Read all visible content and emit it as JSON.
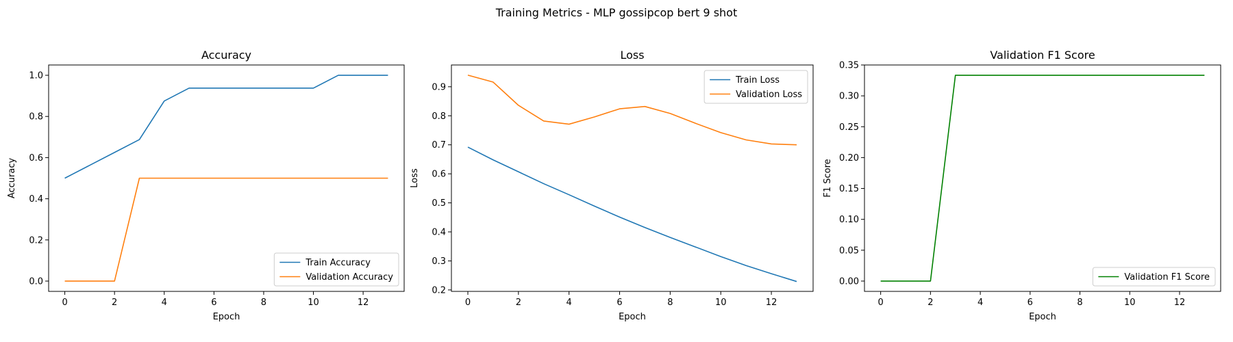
{
  "suptitle": "Training Metrics - MLP gossipcop bert 9 shot",
  "colors": {
    "train": "#1f77b4",
    "validation": "#ff7f0e",
    "f1": "#008000"
  },
  "chart_data": [
    {
      "type": "line",
      "title": "Accuracy",
      "xlabel": "Epoch",
      "ylabel": "Accuracy",
      "xlim": [
        -0.65,
        13.65
      ],
      "ylim": [
        -0.05,
        1.05
      ],
      "xticks": [
        0,
        2,
        4,
        6,
        8,
        10,
        12
      ],
      "yticks": [
        0.0,
        0.2,
        0.4,
        0.6,
        0.8,
        1.0
      ],
      "ytick_labels": [
        "0.0",
        "0.2",
        "0.4",
        "0.6",
        "0.8",
        "1.0"
      ],
      "legend_loc": "lower-right",
      "x": [
        0,
        1,
        2,
        3,
        4,
        5,
        6,
        7,
        8,
        9,
        10,
        11,
        12,
        13
      ],
      "series": [
        {
          "name": "Train Accuracy",
          "color": "#1f77b4",
          "values": [
            0.5,
            0.5625,
            0.625,
            0.6875,
            0.875,
            0.9375,
            0.9375,
            0.9375,
            0.9375,
            0.9375,
            0.9375,
            1.0,
            1.0,
            1.0
          ]
        },
        {
          "name": "Validation Accuracy",
          "color": "#ff7f0e",
          "values": [
            0.0,
            0.0,
            0.0,
            0.5,
            0.5,
            0.5,
            0.5,
            0.5,
            0.5,
            0.5,
            0.5,
            0.5,
            0.5,
            0.5
          ]
        }
      ]
    },
    {
      "type": "line",
      "title": "Loss",
      "xlabel": "Epoch",
      "ylabel": "Loss",
      "xlim": [
        -0.65,
        13.65
      ],
      "ylim": [
        0.195,
        0.975
      ],
      "xticks": [
        0,
        2,
        4,
        6,
        8,
        10,
        12
      ],
      "yticks": [
        0.2,
        0.3,
        0.4,
        0.5,
        0.6,
        0.7,
        0.8,
        0.9
      ],
      "ytick_labels": [
        "0.2",
        "0.3",
        "0.4",
        "0.5",
        "0.6",
        "0.7",
        "0.8",
        "0.9"
      ],
      "legend_loc": "upper-right",
      "x": [
        0,
        1,
        2,
        3,
        4,
        5,
        6,
        7,
        8,
        9,
        10,
        11,
        12,
        13
      ],
      "series": [
        {
          "name": "Train Loss",
          "color": "#1f77b4",
          "values": [
            0.692,
            0.648,
            0.607,
            0.566,
            0.528,
            0.489,
            0.451,
            0.415,
            0.381,
            0.348,
            0.315,
            0.284,
            0.256,
            0.229
          ]
        },
        {
          "name": "Validation Loss",
          "color": "#ff7f0e",
          "values": [
            0.94,
            0.916,
            0.836,
            0.782,
            0.771,
            0.796,
            0.824,
            0.832,
            0.808,
            0.774,
            0.742,
            0.717,
            0.703,
            0.7
          ]
        }
      ]
    },
    {
      "type": "line",
      "title": "Validation F1 Score",
      "xlabel": "Epoch",
      "ylabel": "F1 Score",
      "xlim": [
        -0.65,
        13.65
      ],
      "ylim": [
        -0.0167,
        0.35
      ],
      "xticks": [
        0,
        2,
        4,
        6,
        8,
        10,
        12
      ],
      "yticks": [
        0.0,
        0.05,
        0.1,
        0.15,
        0.2,
        0.25,
        0.3,
        0.35
      ],
      "ytick_labels": [
        "0.00",
        "0.05",
        "0.10",
        "0.15",
        "0.20",
        "0.25",
        "0.30",
        "0.35"
      ],
      "legend_loc": "lower-right",
      "x": [
        0,
        1,
        2,
        3,
        4,
        5,
        6,
        7,
        8,
        9,
        10,
        11,
        12,
        13
      ],
      "series": [
        {
          "name": "Validation F1 Score",
          "color": "#008000",
          "values": [
            0.0,
            0.0,
            0.0,
            0.3333,
            0.3333,
            0.3333,
            0.3333,
            0.3333,
            0.3333,
            0.3333,
            0.3333,
            0.3333,
            0.3333,
            0.3333
          ]
        }
      ]
    }
  ]
}
